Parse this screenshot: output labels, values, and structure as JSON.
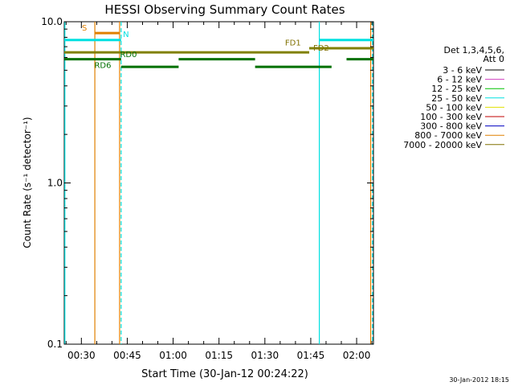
{
  "footer_date": "30-Jan-2012 18:15",
  "legend": {
    "header_line1": "Det 1,3,4,5,6,",
    "header_line2": "Att 0",
    "entries": [
      {
        "label": "3 - 6 keV",
        "color": "#000000"
      },
      {
        "label": "6 - 12 keV",
        "color": "#d040c0"
      },
      {
        "label": "12 - 25 keV",
        "color": "#00c000"
      },
      {
        "label": "25 - 50 keV",
        "color": "#00e0e0"
      },
      {
        "label": "50 - 100 keV",
        "color": "#e0e000"
      },
      {
        "label": "100 - 300 keV",
        "color": "#c00000"
      },
      {
        "label": "300 - 800 keV",
        "color": "#0000c0"
      },
      {
        "label": "800 - 7000 keV",
        "color": "#e08000"
      },
      {
        "label": "7000 - 20000 keV",
        "color": "#807000"
      }
    ]
  },
  "chart_data": {
    "type": "line",
    "title": "HESSI Observing Summary Count Rates",
    "xlabel": "Start Time (30-Jan-12 00:24:22)",
    "ylabel": "Count Rate (s⁻¹ detector⁻¹)",
    "x_unit": "minutes after 00:00 UT, 30-Jan-2012",
    "xlim": [
      24.4,
      125.5
    ],
    "ylim": [
      0.1,
      10.0
    ],
    "y_scale": "log",
    "x_ticks": [
      {
        "value": 30,
        "label": "00:30"
      },
      {
        "value": 45,
        "label": "00:45"
      },
      {
        "value": 60,
        "label": "01:00"
      },
      {
        "value": 75,
        "label": "01:15"
      },
      {
        "value": 90,
        "label": "01:30"
      },
      {
        "value": 105,
        "label": "01:45"
      },
      {
        "value": 120,
        "label": "02:00"
      }
    ],
    "y_ticks": [
      {
        "value": 0.1,
        "label": "0.1"
      },
      {
        "value": 1.0,
        "label": "1.0"
      },
      {
        "value": 10.0,
        "label": "10.0"
      }
    ],
    "vertical_lines": [
      {
        "x": 24.6,
        "color": "#00e0e0",
        "style": "solid"
      },
      {
        "x": 34.4,
        "color": "#e08000",
        "style": "solid"
      },
      {
        "x": 42.5,
        "color": "#e08000",
        "style": "solid"
      },
      {
        "x": 43.0,
        "color": "#00e0e0",
        "style": "dashed"
      },
      {
        "x": 107.8,
        "color": "#00e0e0",
        "style": "solid"
      },
      {
        "x": 124.6,
        "color": "#e08000",
        "style": "solid"
      },
      {
        "x": 125.2,
        "color": "#00e0e0",
        "style": "dashed"
      }
    ],
    "flag_segments": [
      {
        "flag": "S",
        "color": "#e08000",
        "x0": 34.4,
        "x1": 42.5,
        "y": 8.5
      },
      {
        "flag": "N",
        "color": "#00e0e0",
        "x0": 24.4,
        "x1": 43.0,
        "y": 7.7
      },
      {
        "flag": "N",
        "color": "#00e0e0",
        "x0": 107.8,
        "x1": 125.5,
        "y": 7.7
      },
      {
        "flag": "FD1",
        "color": "#808000",
        "x0": 24.4,
        "x1": 104.5,
        "y": 6.45
      },
      {
        "flag": "FD2",
        "color": "#808000",
        "x0": 104.5,
        "x1": 125.5,
        "y": 6.85
      },
      {
        "flag": "RD0",
        "color": "#007000",
        "x0": 24.4,
        "x1": 43.0,
        "y": 5.85
      },
      {
        "flag": "RD0",
        "color": "#007000",
        "x0": 61.8,
        "x1": 86.8,
        "y": 5.85
      },
      {
        "flag": "RD0",
        "color": "#007000",
        "x0": 116.7,
        "x1": 125.5,
        "y": 5.85
      },
      {
        "flag": "RD6",
        "color": "#007000",
        "x0": 43.0,
        "x1": 61.8,
        "y": 5.25
      },
      {
        "flag": "RD6",
        "color": "#007000",
        "x0": 86.8,
        "x1": 111.8,
        "y": 5.25
      }
    ],
    "flag_labels": [
      {
        "text": "S",
        "x": 31.0,
        "y": 8.6,
        "color": "#e08000"
      },
      {
        "text": "N",
        "x": 44.6,
        "y": 7.85,
        "color": "#00e0e0"
      },
      {
        "text": "FD1",
        "x": 99.2,
        "y": 6.95,
        "color": "#807000"
      },
      {
        "text": "FD2",
        "x": 108.4,
        "y": 6.45,
        "color": "#807000"
      },
      {
        "text": "RD0",
        "x": 45.4,
        "y": 5.9,
        "color": "#007000"
      },
      {
        "text": "RD6",
        "x": 37.0,
        "y": 5.05,
        "color": "#007000"
      }
    ]
  }
}
